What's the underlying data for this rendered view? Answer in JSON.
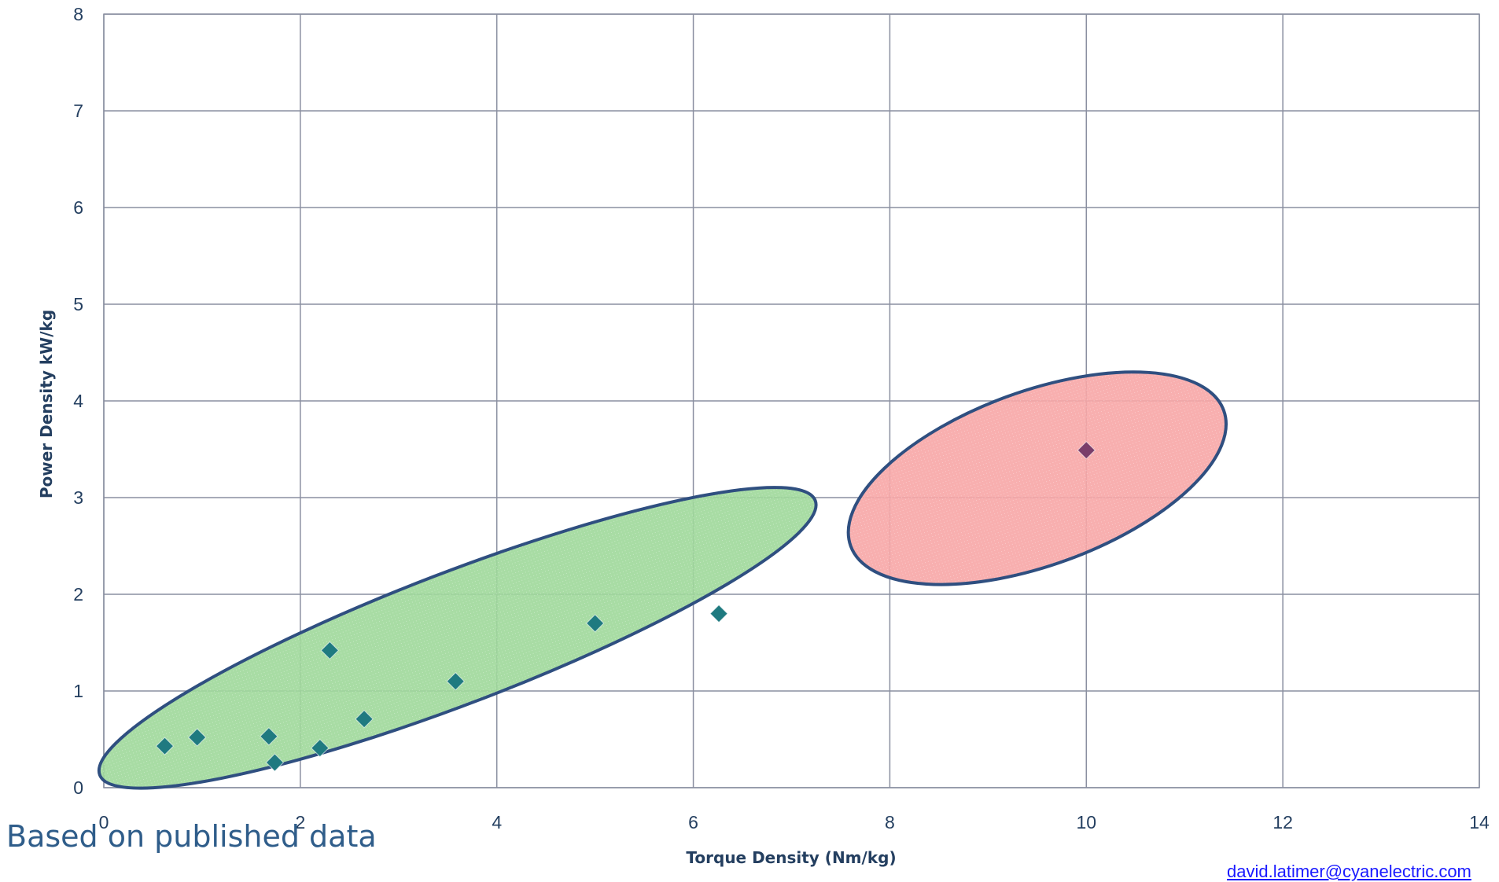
{
  "chart_data": {
    "type": "scatter",
    "xlabel": "Torque Density (Nm/kg)",
    "ylabel": "Power Density kW/kg",
    "xlim": [
      0,
      14
    ],
    "ylim": [
      0,
      8
    ],
    "x_ticks": [
      "0",
      "2",
      "4",
      "6",
      "8",
      "10",
      "12",
      "14"
    ],
    "y_ticks": [
      "0",
      "1",
      "2",
      "3",
      "4",
      "5",
      "6",
      "7",
      "8"
    ],
    "grid": true,
    "series": [
      {
        "color": "#1f7a80",
        "points": [
          {
            "x": 0.62,
            "y": 0.43
          },
          {
            "x": 0.95,
            "y": 0.52
          },
          {
            "x": 1.68,
            "y": 0.53
          },
          {
            "x": 1.74,
            "y": 0.26
          },
          {
            "x": 2.2,
            "y": 0.41
          },
          {
            "x": 2.3,
            "y": 1.42
          },
          {
            "x": 2.65,
            "y": 0.71
          },
          {
            "x": 3.58,
            "y": 1.1
          },
          {
            "x": 5.0,
            "y": 1.7
          },
          {
            "x": 6.26,
            "y": 1.8
          }
        ]
      },
      {
        "color": "#7a3d6a",
        "points": [
          {
            "x": 10.0,
            "y": 3.49
          }
        ]
      }
    ],
    "regions": [
      {
        "shape": "ellipse",
        "fill": "#9fd89a",
        "stroke": "#2f4f80"
      },
      {
        "shape": "ellipse",
        "fill": "#f7a6a6",
        "stroke": "#2f4f80"
      }
    ]
  },
  "footer": {
    "note": "Based on published data",
    "email": "david.latimer@cyanelectric.com"
  }
}
